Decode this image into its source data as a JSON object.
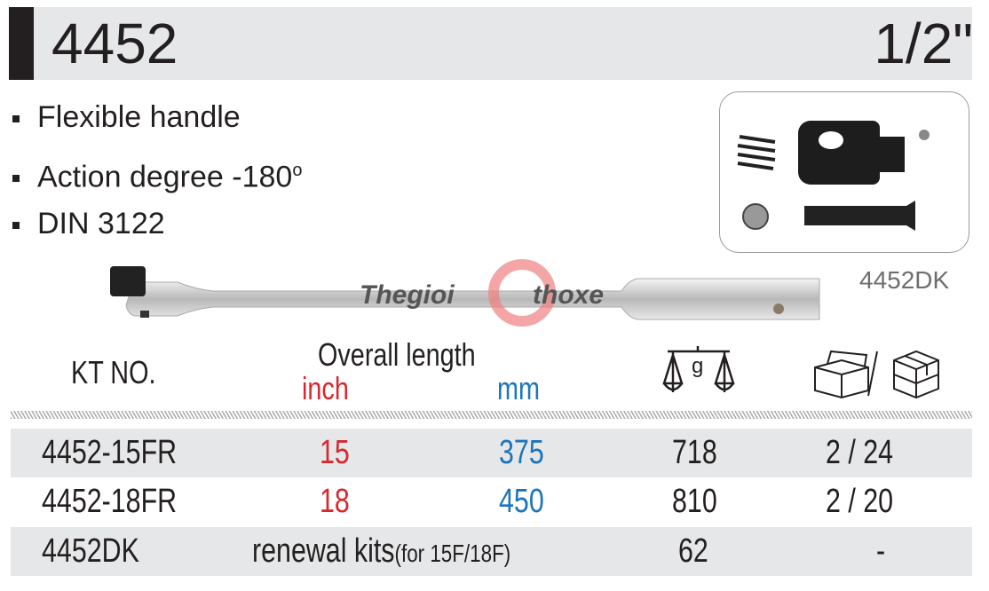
{
  "header": {
    "model": "4452",
    "drive_size": "1/2\""
  },
  "features": [
    "Flexible handle",
    "Action degree -180",
    "DIN 3122"
  ],
  "degree_symbol": "o",
  "kit_label": "4452DK",
  "watermark": {
    "left": "Thegioi",
    "right": "thoxe"
  },
  "table": {
    "col_kt": "KT NO.",
    "col_length": "Overall length",
    "col_inch": "inch",
    "col_mm": "mm",
    "weight_icon": "scale-g-icon",
    "weight_unit": "g",
    "pack_icon": "box-carton-icon",
    "rows": [
      {
        "kt": "4452-15FR",
        "inch": "15",
        "mm": "375",
        "weight": "718",
        "pack": "2 / 24"
      },
      {
        "kt": "4452-18FR",
        "inch": "18",
        "mm": "450",
        "weight": "810",
        "pack": "2 / 20"
      },
      {
        "kt": "4452DK",
        "desc": "renewal kits",
        "desc_note": "(for 15F/18F)",
        "weight": "62",
        "pack": "-"
      }
    ]
  },
  "colors": {
    "inch": "#d7282f",
    "mm": "#1b75bb",
    "row_alt": "#e6e7e8"
  }
}
